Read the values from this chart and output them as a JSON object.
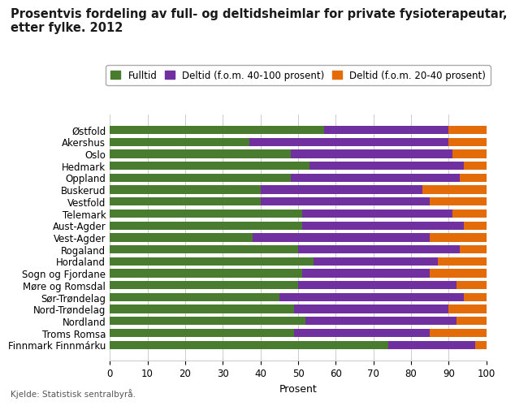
{
  "title": "Prosentvis fordeling av full- og deltidsheimlar for private fysioterapeutar,\netter fylke. 2012",
  "xlabel": "Prosent",
  "footnote": "Kjelde: Statistisk sentralbyrå.",
  "categories": [
    "Finnmark Finnmárku",
    "Troms Romsa",
    "Nordland",
    "Nord-Trøndelag",
    "Sør-Trøndelag",
    "Møre og Romsdal",
    "Sogn og Fjordane",
    "Hordaland",
    "Rogaland",
    "Vest-Agder",
    "Aust-Agder",
    "Telemark",
    "Vestfold",
    "Buskerud",
    "Oppland",
    "Hedmark",
    "Oslo",
    "Akershus",
    "Østfold"
  ],
  "fulltid": [
    74,
    49,
    52,
    49,
    45,
    50,
    51,
    54,
    50,
    38,
    51,
    51,
    40,
    40,
    48,
    53,
    48,
    37,
    57
  ],
  "deltid_high": [
    23,
    36,
    40,
    41,
    49,
    42,
    34,
    33,
    43,
    47,
    43,
    40,
    45,
    43,
    45,
    41,
    43,
    53,
    33
  ],
  "deltid_low": [
    3,
    15,
    8,
    10,
    6,
    8,
    15,
    13,
    7,
    15,
    6,
    9,
    15,
    17,
    7,
    6,
    9,
    10,
    10
  ],
  "color_fulltid": "#4a7c2f",
  "color_deltid_high": "#7030a0",
  "color_deltid_low": "#e36c09",
  "legend_labels": [
    "Fulltid",
    "Deltid (f.o.m. 40-100 prosent)",
    "Deltid (f.o.m. 20-40 prosent)"
  ],
  "xlim": [
    0,
    100
  ],
  "xticks": [
    0,
    10,
    20,
    30,
    40,
    50,
    60,
    70,
    80,
    90,
    100
  ],
  "bar_height": 0.7,
  "title_fontsize": 10.5,
  "label_fontsize": 9,
  "tick_fontsize": 8.5,
  "legend_fontsize": 8.5,
  "bg_color": "#ffffff",
  "grid_color": "#cccccc"
}
